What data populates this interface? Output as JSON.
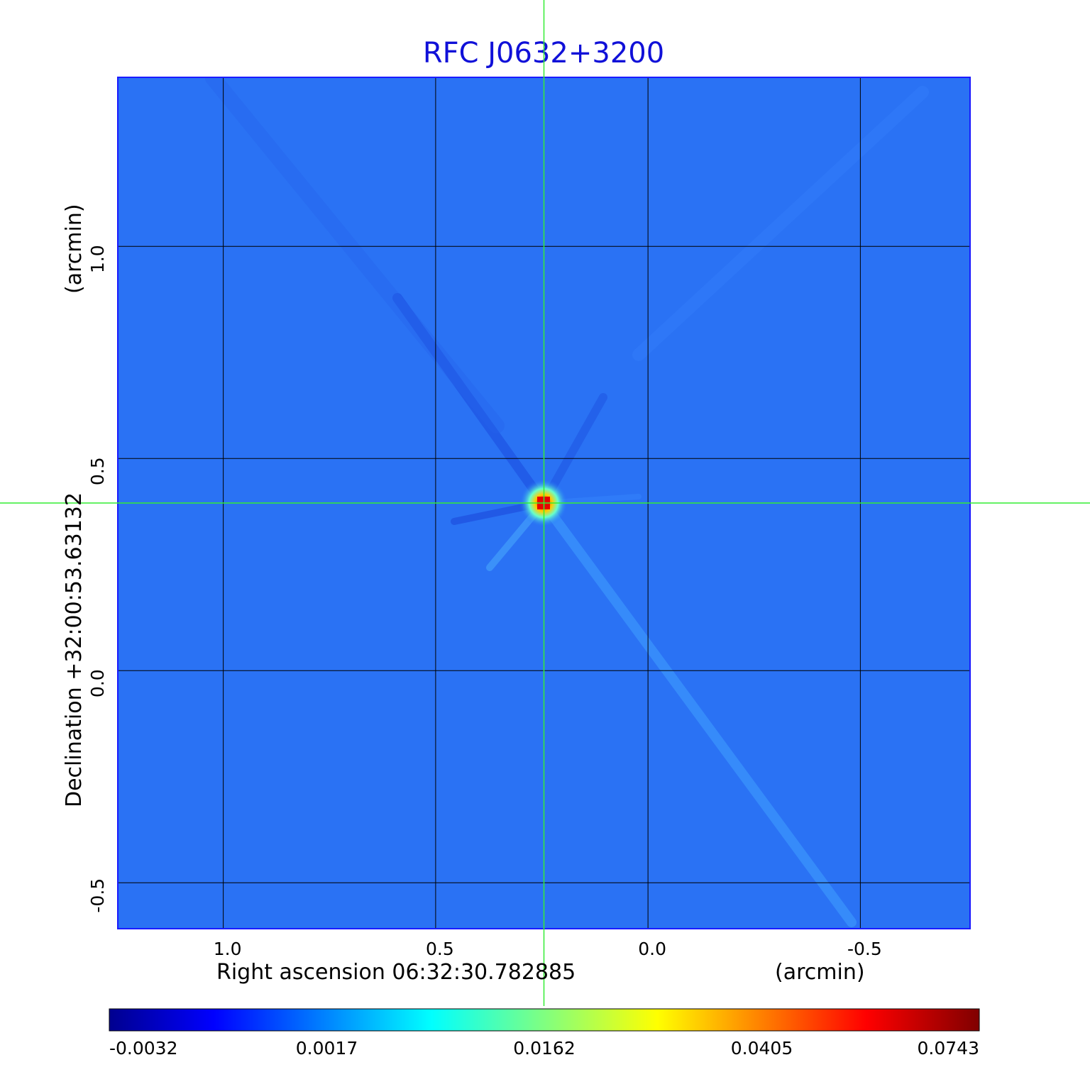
{
  "chart_data": {
    "type": "heatmap",
    "title": "RFC J0632+3200",
    "title_color": "#1010d8",
    "xlabel": "Right ascension  06:32:30.782885",
    "xunit": "(arcmin)",
    "ylabel": "Declination  +32:00:53.63132",
    "yunit": "(arcmin)",
    "xlim": [
      1.25,
      -0.76
    ],
    "ylim": [
      -0.61,
      1.4
    ],
    "x_ticks": [
      1.0,
      0.5,
      0.0,
      -0.5
    ],
    "x_tick_labels": [
      "1.0",
      "0.5",
      "0.0",
      "-0.5"
    ],
    "y_ticks": [
      1.0,
      0.5,
      0.0,
      -0.5
    ],
    "y_tick_labels": [
      "1.0",
      "0.5",
      "0.0",
      "-0.5"
    ],
    "grid": true,
    "grid_color": "#000000",
    "frame_color": "#1a1aff",
    "crosshair": {
      "x": 0.245,
      "y": 0.395,
      "color": "#33ee33"
    },
    "source_peak": {
      "x": 0.245,
      "y": 0.395,
      "value": 0.0743
    },
    "background_level": 0.0005,
    "colorscale": "jet",
    "colorbar": {
      "tick_labels": [
        "-0.0032",
        "0.0017",
        "0.0162",
        "0.0405",
        "0.0743"
      ],
      "range": [
        -0.0032,
        0.0743
      ]
    }
  }
}
